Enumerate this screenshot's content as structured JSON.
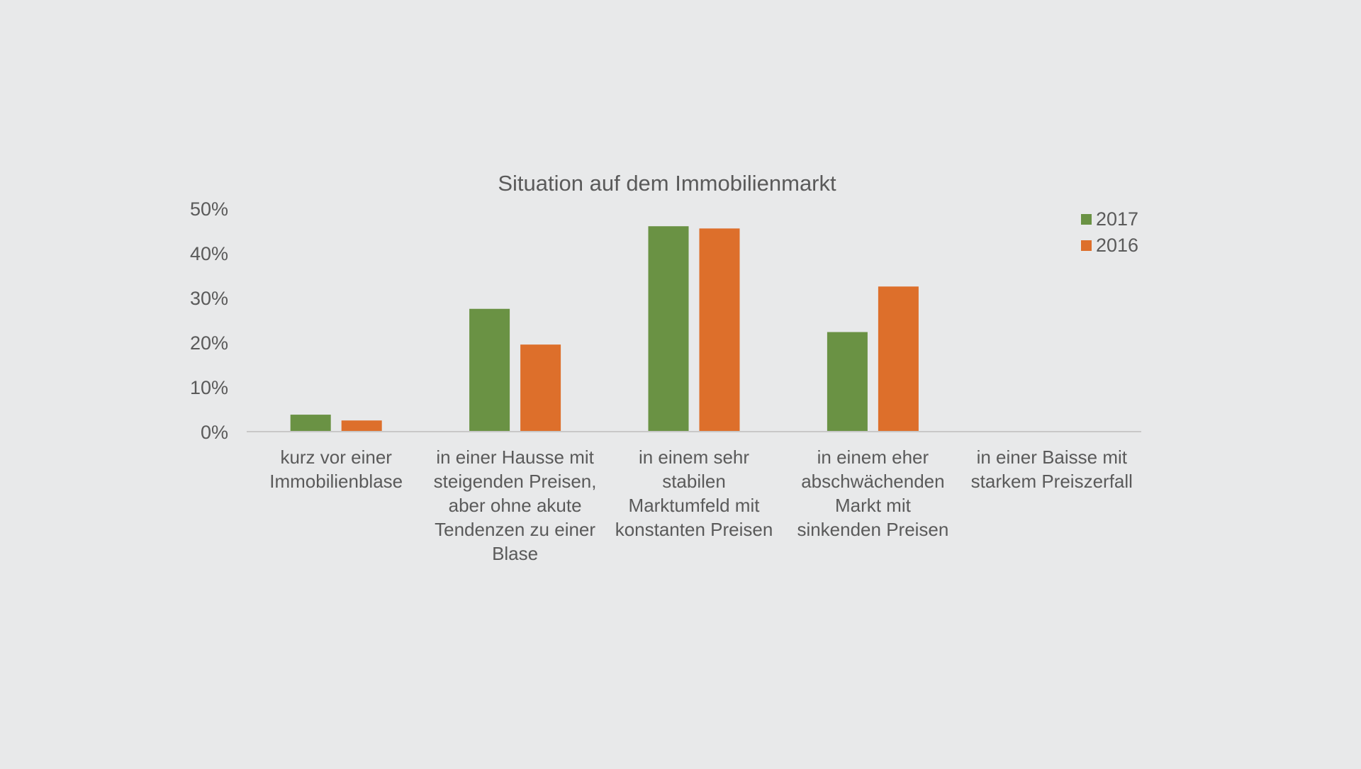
{
  "chart_data": {
    "type": "bar",
    "title": "Situation auf dem Immobilienmarkt",
    "xlabel": "",
    "ylabel": "",
    "ylim": [
      0,
      50
    ],
    "yticks": [
      "0%",
      "10%",
      "20%",
      "30%",
      "40%",
      "50%"
    ],
    "ytick_values": [
      0,
      10,
      20,
      30,
      40,
      50
    ],
    "grid": false,
    "legend_position": "top-right",
    "categories": [
      [
        "kurz vor einer",
        "Immobilienblase"
      ],
      [
        "in einer Hausse mit",
        "steigenden Preisen,",
        "aber ohne akute",
        "Tendenzen zu einer",
        "Blase"
      ],
      [
        "in einem sehr",
        "stabilen",
        "Marktumfeld mit",
        "konstanten Preisen"
      ],
      [
        "in einem eher",
        "abschwächenden",
        "Markt mit",
        "sinkenden Preisen"
      ],
      [
        "in einer Baisse mit",
        "starkem Preiszerfall"
      ]
    ],
    "series": [
      {
        "name": "2017",
        "color": "#6a9244",
        "values": [
          3.8,
          27.5,
          46,
          22.3,
          0
        ]
      },
      {
        "name": "2016",
        "color": "#dd6f2b",
        "values": [
          2.5,
          19.5,
          45.5,
          32.5,
          0
        ]
      }
    ]
  }
}
